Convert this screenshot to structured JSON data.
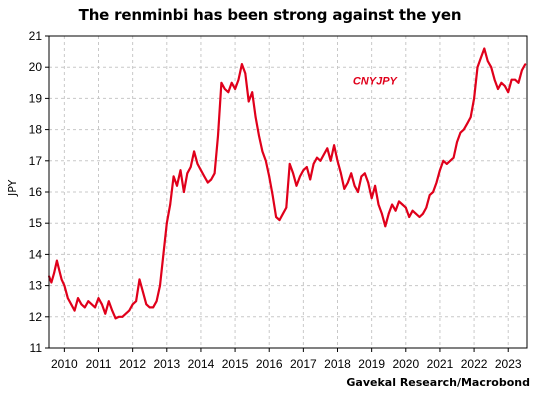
{
  "colors": {
    "series": "#e0001b",
    "grid": "#c8c8c8",
    "axis": "#000000"
  },
  "chart_data": {
    "type": "line",
    "title": "The renminbi has been strong against the yen",
    "ylabel": "JPY",
    "xlabel": "",
    "source": "Gavekal Research/Macrobond",
    "ylim": [
      11,
      21
    ],
    "xlim": [
      2009.55,
      2023.55
    ],
    "yticks": [
      11,
      12,
      13,
      14,
      15,
      16,
      17,
      18,
      19,
      20,
      21
    ],
    "xticks": [
      2010,
      2011,
      2012,
      2013,
      2014,
      2015,
      2016,
      2017,
      2018,
      2019,
      2020,
      2021,
      2022,
      2023
    ],
    "grid": true,
    "series": [
      {
        "name": "CNYJPY",
        "x": [
          2009.55,
          2009.62,
          2009.7,
          2009.78,
          2009.85,
          2009.92,
          2010.0,
          2010.1,
          2010.2,
          2010.3,
          2010.4,
          2010.5,
          2010.6,
          2010.7,
          2010.8,
          2010.9,
          2011.0,
          2011.1,
          2011.2,
          2011.3,
          2011.4,
          2011.5,
          2011.6,
          2011.7,
          2011.8,
          2011.9,
          2012.0,
          2012.1,
          2012.2,
          2012.3,
          2012.4,
          2012.5,
          2012.6,
          2012.7,
          2012.8,
          2012.9,
          2013.0,
          2013.1,
          2013.2,
          2013.3,
          2013.4,
          2013.5,
          2013.6,
          2013.7,
          2013.8,
          2013.9,
          2014.0,
          2014.1,
          2014.2,
          2014.3,
          2014.4,
          2014.5,
          2014.6,
          2014.7,
          2014.8,
          2014.9,
          2015.0,
          2015.1,
          2015.2,
          2015.3,
          2015.4,
          2015.5,
          2015.6,
          2015.7,
          2015.8,
          2015.9,
          2016.0,
          2016.1,
          2016.2,
          2016.3,
          2016.4,
          2016.5,
          2016.6,
          2016.7,
          2016.8,
          2016.9,
          2017.0,
          2017.1,
          2017.2,
          2017.3,
          2017.4,
          2017.5,
          2017.6,
          2017.7,
          2017.8,
          2017.9,
          2018.0,
          2018.1,
          2018.2,
          2018.3,
          2018.4,
          2018.5,
          2018.6,
          2018.7,
          2018.8,
          2018.9,
          2019.0,
          2019.1,
          2019.2,
          2019.3,
          2019.4,
          2019.5,
          2019.6,
          2019.7,
          2019.8,
          2019.9,
          2020.0,
          2020.1,
          2020.2,
          2020.3,
          2020.4,
          2020.5,
          2020.6,
          2020.7,
          2020.8,
          2020.9,
          2021.0,
          2021.1,
          2021.2,
          2021.3,
          2021.4,
          2021.5,
          2021.6,
          2021.7,
          2021.8,
          2021.9,
          2022.0,
          2022.1,
          2022.2,
          2022.3,
          2022.4,
          2022.5,
          2022.6,
          2022.7,
          2022.8,
          2022.9,
          2023.0,
          2023.1,
          2023.2,
          2023.3,
          2023.4,
          2023.5
        ],
        "values": [
          13.3,
          13.1,
          13.4,
          13.8,
          13.5,
          13.2,
          13.0,
          12.6,
          12.4,
          12.2,
          12.6,
          12.4,
          12.3,
          12.5,
          12.4,
          12.3,
          12.6,
          12.4,
          12.1,
          12.5,
          12.2,
          11.95,
          12.0,
          12.0,
          12.1,
          12.2,
          12.4,
          12.5,
          13.2,
          12.8,
          12.4,
          12.3,
          12.3,
          12.5,
          13.0,
          14.0,
          15.0,
          15.6,
          16.5,
          16.2,
          16.7,
          16.0,
          16.6,
          16.8,
          17.3,
          16.9,
          16.7,
          16.5,
          16.3,
          16.4,
          16.6,
          17.8,
          19.5,
          19.3,
          19.2,
          19.5,
          19.3,
          19.6,
          20.1,
          19.8,
          18.9,
          19.2,
          18.4,
          17.8,
          17.3,
          17.0,
          16.5,
          15.9,
          15.2,
          15.1,
          15.3,
          15.5,
          16.9,
          16.6,
          16.2,
          16.5,
          16.7,
          16.8,
          16.4,
          16.9,
          17.1,
          17.0,
          17.2,
          17.4,
          17.0,
          17.5,
          17.0,
          16.6,
          16.1,
          16.3,
          16.6,
          16.2,
          16.0,
          16.5,
          16.6,
          16.3,
          15.8,
          16.2,
          15.6,
          15.3,
          14.9,
          15.3,
          15.6,
          15.4,
          15.7,
          15.6,
          15.5,
          15.2,
          15.4,
          15.3,
          15.2,
          15.3,
          15.5,
          15.9,
          16.0,
          16.3,
          16.7,
          17.0,
          16.9,
          17.0,
          17.1,
          17.6,
          17.9,
          18.0,
          18.2,
          18.4,
          19.0,
          20.0,
          20.3,
          20.6,
          20.2,
          20.0,
          19.6,
          19.3,
          19.5,
          19.4,
          19.2,
          19.6,
          19.6,
          19.5,
          19.9,
          20.1
        ]
      }
    ]
  }
}
